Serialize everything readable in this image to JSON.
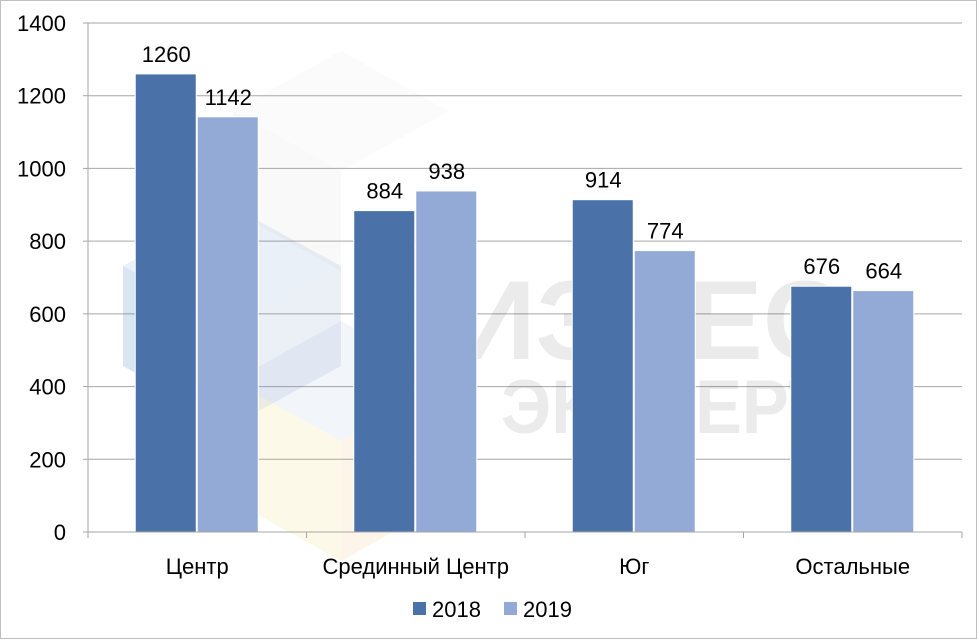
{
  "chart_data": {
    "type": "bar",
    "categories": [
      "Центр",
      "Срединный Центр",
      "Юг",
      "Остальные"
    ],
    "series": [
      {
        "name": "2018",
        "values": [
          1260,
          884,
          914,
          676
        ],
        "color": "#4a72a8"
      },
      {
        "name": "2019",
        "values": [
          1142,
          938,
          774,
          664
        ],
        "color": "#94aad6"
      }
    ],
    "ylim": [
      0,
      1400
    ],
    "yticks": [
      0,
      200,
      400,
      600,
      800,
      1000,
      1200,
      1400
    ],
    "grid": true,
    "legend_position": "bottom",
    "title": "",
    "xlabel": "",
    "ylabel": ""
  },
  "watermark": {
    "line1": "БИЗНЕС",
    "line2": "ЭКСПЕРТ"
  }
}
